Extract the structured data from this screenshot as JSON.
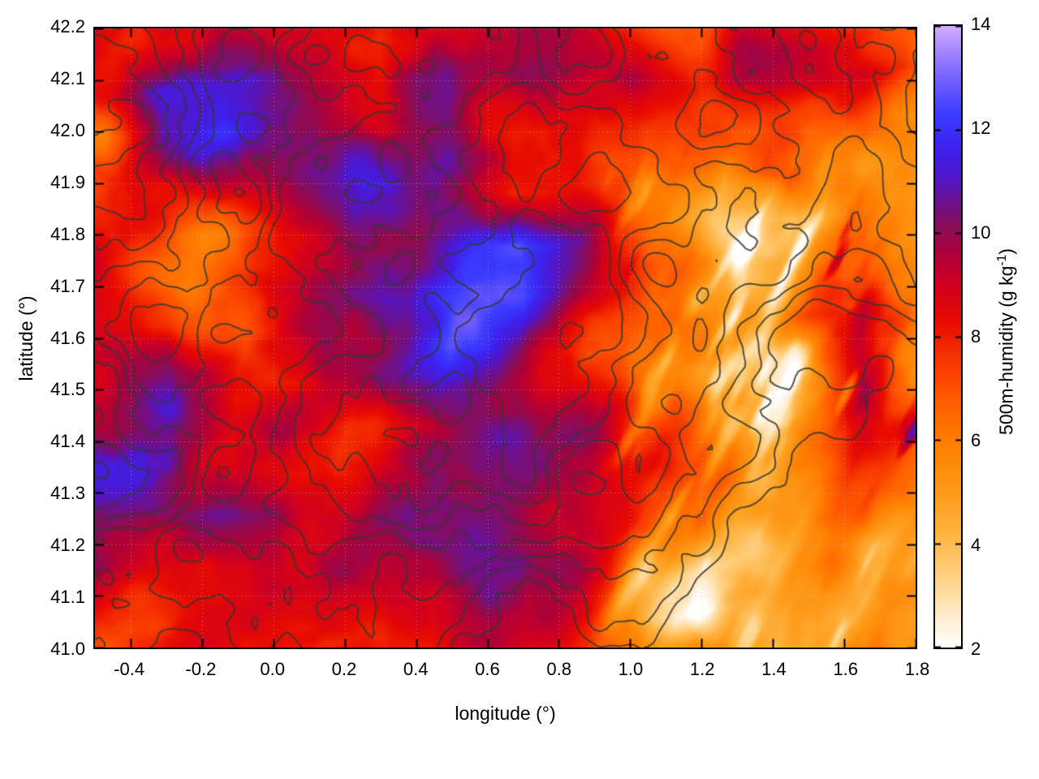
{
  "figure": {
    "background": "#ffffff",
    "colorbar_label_main": "500m-humidity (g kg",
    "colorbar_label_sup": "-1",
    "colorbar_label_end": ")"
  },
  "chart_data": {
    "type": "heatmap",
    "title": "",
    "xlabel": "longitude (°)",
    "ylabel": "latitude (°)",
    "colorbar_label": "500m-humidity (g kg⁻¹)",
    "xlim": [
      -0.5,
      1.8
    ],
    "ylim": [
      41.0,
      42.2
    ],
    "color_range": [
      2,
      14
    ],
    "x_ticks": [
      {
        "v": -0.4,
        "label": "-0.4"
      },
      {
        "v": -0.2,
        "label": "-0.2"
      },
      {
        "v": 0.0,
        "label": "0.0"
      },
      {
        "v": 0.2,
        "label": "0.2"
      },
      {
        "v": 0.4,
        "label": "0.4"
      },
      {
        "v": 0.6,
        "label": "0.6"
      },
      {
        "v": 0.8,
        "label": "0.8"
      },
      {
        "v": 1.0,
        "label": "1.0"
      },
      {
        "v": 1.2,
        "label": "1.2"
      },
      {
        "v": 1.4,
        "label": "1.4"
      },
      {
        "v": 1.6,
        "label": "1.6"
      },
      {
        "v": 1.8,
        "label": "1.8"
      }
    ],
    "y_ticks": [
      {
        "v": 41.0,
        "label": "41.0"
      },
      {
        "v": 41.1,
        "label": "41.1"
      },
      {
        "v": 41.2,
        "label": "41.2"
      },
      {
        "v": 41.3,
        "label": "41.3"
      },
      {
        "v": 41.4,
        "label": "41.4"
      },
      {
        "v": 41.5,
        "label": "41.5"
      },
      {
        "v": 41.6,
        "label": "41.6"
      },
      {
        "v": 41.7,
        "label": "41.7"
      },
      {
        "v": 41.8,
        "label": "41.8"
      },
      {
        "v": 41.9,
        "label": "41.9"
      },
      {
        "v": 42.0,
        "label": "42.0"
      },
      {
        "v": 42.1,
        "label": "42.1"
      },
      {
        "v": 42.2,
        "label": "42.2"
      }
    ],
    "colorbar_ticks": [
      {
        "v": 2,
        "label": "2"
      },
      {
        "v": 4,
        "label": "4"
      },
      {
        "v": 6,
        "label": "6"
      },
      {
        "v": 8,
        "label": "8"
      },
      {
        "v": 10,
        "label": "10"
      },
      {
        "v": 12,
        "label": "12"
      },
      {
        "v": 14,
        "label": "14"
      }
    ],
    "grid_lines": "dotted gray at major ticks",
    "overlay_contours": {
      "color": "#3a3a32",
      "description": "terrain isolines, unlabeled, denser toward southeast corner"
    },
    "palette_stops": [
      [
        2.0,
        "#ffffff"
      ],
      [
        2.7,
        "#ffe9c4"
      ],
      [
        3.4,
        "#ffd080"
      ],
      [
        4.2,
        "#ffb340"
      ],
      [
        5.0,
        "#ff9a18"
      ],
      [
        6.0,
        "#ff7d00"
      ],
      [
        6.9,
        "#ff5500"
      ],
      [
        7.6,
        "#f63400"
      ],
      [
        8.3,
        "#e80b00"
      ],
      [
        9.0,
        "#d1001f"
      ],
      [
        9.6,
        "#ad0038"
      ],
      [
        10.1,
        "#8a0c55"
      ],
      [
        10.6,
        "#6d108d"
      ],
      [
        11.1,
        "#4f17cd"
      ],
      [
        11.7,
        "#3c23f0"
      ],
      [
        12.3,
        "#3b3cff"
      ],
      [
        12.9,
        "#6e5cff"
      ],
      [
        13.5,
        "#a084ff"
      ],
      [
        14.0,
        "#d2aeff"
      ]
    ],
    "field_grid": {
      "units": "g/kg, coarse estimate of 500m-humidity field read from colors",
      "lon": [
        -0.5,
        -0.308,
        -0.117,
        0.075,
        0.267,
        0.458,
        0.65,
        0.842,
        1.033,
        1.225,
        1.417,
        1.608,
        1.8
      ],
      "lat": [
        42.2,
        42.1,
        42.0,
        41.9,
        41.8,
        41.7,
        41.6,
        41.5,
        41.4,
        41.3,
        41.2,
        41.1,
        41.0
      ],
      "values": [
        [
          7,
          8,
          9,
          8,
          8,
          8,
          8,
          9,
          8,
          8,
          8,
          8,
          6
        ],
        [
          8,
          11,
          11,
          9,
          8,
          10,
          9,
          10,
          10,
          9,
          10,
          9,
          7
        ],
        [
          6,
          10,
          11,
          9,
          8,
          9,
          8,
          9,
          8,
          8,
          9,
          7,
          5
        ],
        [
          8,
          8,
          9,
          10,
          11,
          10,
          8,
          9,
          7,
          7,
          9,
          6,
          5
        ],
        [
          8,
          8,
          7,
          10,
          11,
          12,
          13,
          11,
          6,
          5,
          6,
          7,
          5
        ],
        [
          8,
          7,
          8,
          10,
          12,
          13,
          13,
          10,
          7,
          5,
          6,
          8,
          5
        ],
        [
          8,
          8,
          7,
          9,
          10,
          13,
          11,
          8,
          8,
          6,
          8,
          10,
          5
        ],
        [
          9,
          10,
          8,
          8,
          9,
          11,
          10,
          10,
          8,
          7,
          5,
          10,
          4
        ],
        [
          9,
          11,
          9,
          10,
          8,
          9,
          11,
          10,
          8,
          7,
          6,
          9,
          6
        ],
        [
          10,
          11,
          10,
          9,
          8,
          10,
          11,
          9,
          8,
          6,
          5,
          8,
          6
        ],
        [
          9,
          10,
          11,
          10,
          9,
          11,
          10,
          9,
          7,
          3,
          4,
          6,
          5
        ],
        [
          10,
          9,
          8,
          9,
          10,
          9,
          9,
          8,
          6,
          2,
          4,
          5,
          5
        ],
        [
          8,
          8,
          8,
          8,
          8,
          8,
          8,
          7,
          6,
          5,
          5,
          5,
          5
        ]
      ]
    }
  }
}
